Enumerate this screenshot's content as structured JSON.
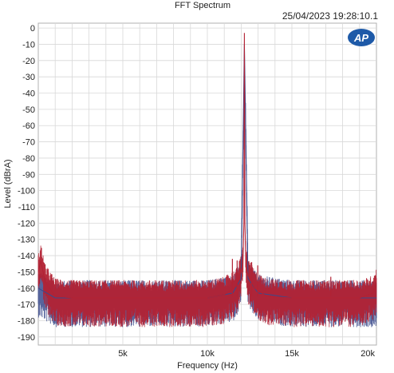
{
  "chart_data": {
    "type": "line",
    "title": "FFT Spectrum",
    "timestamp": "25/04/2023 19:28:10.1",
    "logo": "AP",
    "xlabel": "Frequency (Hz)",
    "ylabel": "Level (dBrA)",
    "xlim": [
      0,
      20000
    ],
    "ylim": [
      -195,
      3
    ],
    "x_ticks": [
      {
        "value": 5000,
        "label": "5k"
      },
      {
        "value": 10000,
        "label": "10k"
      },
      {
        "value": 15000,
        "label": "15k"
      },
      {
        "value": 20000,
        "label": "20k"
      }
    ],
    "y_ticks": [
      {
        "value": 0,
        "label": "0"
      },
      {
        "value": -10,
        "label": "-10"
      },
      {
        "value": -20,
        "label": "-20"
      },
      {
        "value": -30,
        "label": "-30"
      },
      {
        "value": -40,
        "label": "-40"
      },
      {
        "value": -50,
        "label": "-50"
      },
      {
        "value": -60,
        "label": "-60"
      },
      {
        "value": -70,
        "label": "-70"
      },
      {
        "value": -80,
        "label": "-80"
      },
      {
        "value": -90,
        "label": "-90"
      },
      {
        "value": -100,
        "label": "-100"
      },
      {
        "value": -110,
        "label": "-110"
      },
      {
        "value": -120,
        "label": "-120"
      },
      {
        "value": -130,
        "label": "-130"
      },
      {
        "value": -140,
        "label": "-140"
      },
      {
        "value": -150,
        "label": "-150"
      },
      {
        "value": -160,
        "label": "-160"
      },
      {
        "value": -170,
        "label": "-170"
      },
      {
        "value": -180,
        "label": "-180"
      },
      {
        "value": -190,
        "label": "-190"
      }
    ],
    "grid": true,
    "colors": {
      "series_1": "#b22234",
      "series_2": "#3a4a8c",
      "grid": "#d8d8d8",
      "logo": "#1e5aa8"
    },
    "series": [
      {
        "color": "#b22234",
        "points": [
          [
            0,
            -150
          ],
          [
            150,
            -143
          ],
          [
            400,
            -156
          ],
          [
            1000,
            -165
          ],
          [
            2000,
            -166
          ],
          [
            4000,
            -166
          ],
          [
            6000,
            -166
          ],
          [
            8000,
            -166
          ],
          [
            10000,
            -166
          ],
          [
            11000,
            -164
          ],
          [
            11700,
            -159
          ],
          [
            11950,
            -152
          ],
          [
            12100,
            -145
          ],
          [
            12160,
            -120
          ],
          [
            12190,
            -3
          ],
          [
            12220,
            -120
          ],
          [
            12280,
            -145
          ],
          [
            12400,
            -152
          ],
          [
            12800,
            -160
          ],
          [
            13500,
            -165
          ],
          [
            15000,
            -166
          ],
          [
            17000,
            -166
          ],
          [
            19000,
            -166
          ],
          [
            19800,
            -163
          ],
          [
            20000,
            -158
          ]
        ],
        "spurs": [
          [
            11480,
            -142
          ],
          [
            11760,
            -143
          ],
          [
            12620,
            -144
          ],
          [
            12980,
            -146
          ],
          [
            17300,
            -153
          ]
        ]
      },
      {
        "color": "#3a4a8c",
        "points": [
          [
            0,
            -160
          ],
          [
            1000,
            -166
          ],
          [
            4000,
            -166
          ],
          [
            8000,
            -166
          ],
          [
            10000,
            -166
          ],
          [
            11500,
            -163
          ],
          [
            12000,
            -154
          ],
          [
            12190,
            -10
          ],
          [
            12400,
            -154
          ],
          [
            13000,
            -163
          ],
          [
            15000,
            -166
          ],
          [
            20000,
            -166
          ]
        ]
      }
    ]
  }
}
